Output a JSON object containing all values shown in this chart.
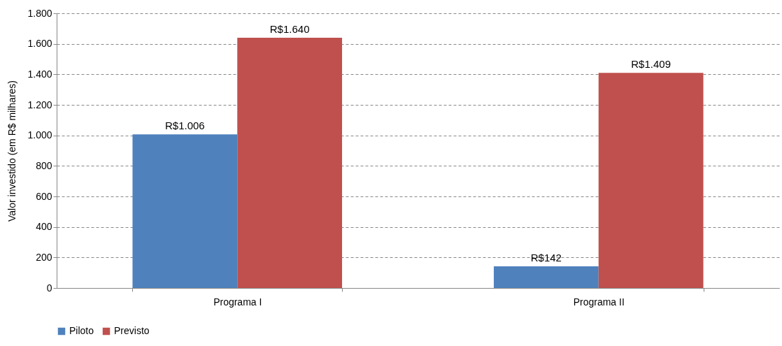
{
  "chart_data": {
    "type": "bar",
    "ylabel": "Valor investido (em R$ milhares)",
    "categories": [
      "Programa I",
      "Programa II"
    ],
    "series": [
      {
        "name": "Piloto",
        "color": "#4f81bd",
        "values": [
          1006,
          142
        ],
        "value_labels": [
          "R$1.006",
          "R$142"
        ]
      },
      {
        "name": "Previsto",
        "color": "#c0504d",
        "values": [
          1640,
          1409
        ],
        "value_labels": [
          "R$1.640",
          "R$1.409"
        ]
      }
    ],
    "ylim": [
      0,
      1800
    ],
    "yticks": [
      0,
      {
        "value": 200,
        "label": "200"
      },
      {
        "value": 400,
        "label": "400"
      },
      {
        "value": 600,
        "label": "600"
      },
      {
        "value": 800,
        "label": "800"
      },
      {
        "value": 1000,
        "label": "1.000"
      },
      {
        "value": 1200,
        "label": "1.200"
      },
      {
        "value": 1400,
        "label": "1.400"
      },
      {
        "value": 1600,
        "label": "1.600"
      },
      {
        "value": 1800,
        "label": "1.800"
      }
    ],
    "grid": "y",
    "legend": "bottom"
  }
}
